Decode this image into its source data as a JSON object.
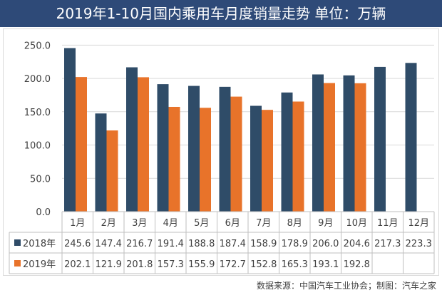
{
  "chart_data": {
    "type": "bar",
    "title": "2019年1-10月国内乘用车月度销量走势  单位：万辆",
    "categories": [
      "1月",
      "2月",
      "3月",
      "4月",
      "5月",
      "6月",
      "7月",
      "8月",
      "9月",
      "10月",
      "11月",
      "12月"
    ],
    "series": [
      {
        "name": "2018年",
        "color": "#2f4c68",
        "values": [
          245.6,
          147.4,
          216.7,
          191.4,
          188.8,
          187.4,
          158.9,
          178.9,
          206.0,
          204.6,
          217.3,
          223.3
        ],
        "labels": [
          "245.6",
          "147.4",
          "216.7",
          "191.4",
          "188.8",
          "187.4",
          "158.9",
          "178.9",
          "206.0",
          "204.6",
          "217.3",
          "223.3"
        ]
      },
      {
        "name": "2019年",
        "color": "#e8732a",
        "values": [
          202.1,
          121.9,
          201.8,
          157.3,
          155.9,
          172.7,
          152.8,
          165.3,
          193.1,
          192.8,
          null,
          null
        ],
        "labels": [
          "202.1",
          "121.9",
          "201.8",
          "157.3",
          "155.9",
          "172.7",
          "152.8",
          "165.3",
          "193.1",
          "192.8",
          "",
          ""
        ]
      }
    ],
    "y_ticks": [
      "0.0",
      "50.0",
      "100.0",
      "150.0",
      "200.0",
      "250.0"
    ],
    "ylim": [
      0,
      260
    ],
    "xlabel": "",
    "ylabel": "",
    "grid": true
  },
  "title_bar": {
    "color": "#2e4a78",
    "text_color": "#ffffff"
  },
  "footer": {
    "source": "数据来源：中国汽车工业协会；制图：汽车之家"
  }
}
